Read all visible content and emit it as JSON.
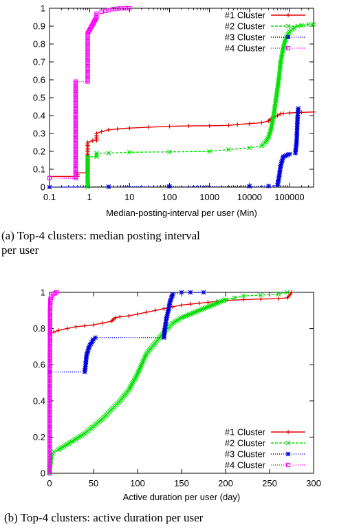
{
  "colors": {
    "c1": "#e00000",
    "c2": "#00e000",
    "c3": "#0000dd",
    "c4": "#ff00ff"
  },
  "chart_data": [
    {
      "id": "a",
      "type": "line",
      "xscale": "log",
      "xlim": [
        0.1,
        400000
      ],
      "ylim": [
        0,
        1
      ],
      "xticks": [
        0.1,
        1,
        10,
        100,
        1000,
        10000,
        100000
      ],
      "xtick_labels": [
        "0.1",
        "1",
        "10",
        "100",
        "1000",
        "10000",
        "100000"
      ],
      "yticks": [
        0,
        0.1,
        0.2,
        0.3,
        0.4,
        0.5,
        0.6,
        0.7,
        0.8,
        0.9,
        1
      ],
      "ytick_labels": [
        "0",
        "0.1",
        "0.2",
        "0.3",
        "0.4",
        "0.5",
        "0.6",
        "0.7",
        "0.8",
        "0.9",
        "1"
      ],
      "xlabel": "Median-posting-interval per user (Min)",
      "ylabel": "",
      "legend_position": "top-right",
      "caption_lines": [
        "(a) Top-4 clusters: median posting interval",
        "per user"
      ],
      "series": [
        {
          "name": "#1 Cluster",
          "color": "#e00000",
          "marker": "plus",
          "dash": "",
          "x": [
            0.1,
            0.5,
            0.5,
            0.9,
            0.9,
            1.2,
            1.5,
            1.5,
            2,
            3,
            5,
            10,
            30,
            100,
            300,
            1000,
            3000,
            5000,
            10000,
            20000,
            30000,
            40000,
            50000,
            60000,
            70000,
            100000,
            200000,
            400000
          ],
          "y": [
            0.06,
            0.06,
            0.08,
            0.08,
            0.25,
            0.26,
            0.26,
            0.3,
            0.31,
            0.32,
            0.325,
            0.33,
            0.335,
            0.34,
            0.342,
            0.343,
            0.345,
            0.35,
            0.355,
            0.36,
            0.37,
            0.39,
            0.4,
            0.41,
            0.412,
            0.415,
            0.418,
            0.42
          ]
        },
        {
          "name": "#2 Cluster",
          "color": "#00e000",
          "marker": "x",
          "dash": "4,2",
          "x": [
            0.9,
            0.9,
            1.5,
            1.5,
            3,
            10,
            100,
            1000,
            3000,
            10000,
            20000,
            25000,
            30000,
            35000,
            40000,
            45000,
            50000,
            55000,
            60000,
            70000,
            80000,
            100000,
            130000,
            160000,
            200000,
            300000,
            400000
          ],
          "y": [
            0,
            0.17,
            0.17,
            0.19,
            0.19,
            0.195,
            0.197,
            0.2,
            0.21,
            0.22,
            0.23,
            0.25,
            0.28,
            0.33,
            0.4,
            0.48,
            0.55,
            0.62,
            0.7,
            0.78,
            0.83,
            0.87,
            0.89,
            0.9,
            0.905,
            0.91,
            0.91
          ]
        },
        {
          "name": "#3 Cluster",
          "color": "#0000dd",
          "marker": "star",
          "dash": "1,2",
          "x": [
            0.1,
            3,
            100,
            10000,
            30000,
            50000,
            55000,
            60000,
            70000,
            100000,
            140000,
            150000,
            155000,
            160000,
            165000
          ],
          "y": [
            0,
            0.002,
            0.004,
            0.005,
            0.006,
            0.01,
            0.06,
            0.12,
            0.17,
            0.185,
            0.19,
            0.25,
            0.33,
            0.4,
            0.44
          ]
        },
        {
          "name": "#4 Cluster",
          "color": "#ff00ff",
          "marker": "square",
          "dash": "1,2",
          "x": [
            0.1,
            0.45,
            0.45,
            0.9,
            0.9,
            1.2,
            1.5,
            1.5,
            2,
            2.5,
            3,
            4,
            5,
            6,
            8,
            10
          ],
          "y": [
            0.05,
            0.05,
            0.59,
            0.59,
            0.86,
            0.91,
            0.95,
            0.97,
            0.98,
            0.985,
            0.99,
            0.995,
            0.998,
            0.999,
            1,
            1
          ]
        }
      ]
    },
    {
      "id": "b",
      "type": "line",
      "xscale": "linear",
      "xlim": [
        0,
        300
      ],
      "ylim": [
        0,
        1
      ],
      "xticks": [
        0,
        50,
        100,
        150,
        200,
        250,
        300
      ],
      "xtick_labels": [
        "0",
        "50",
        "100",
        "150",
        "200",
        "250",
        "300"
      ],
      "yticks": [
        0,
        0.2,
        0.4,
        0.6,
        0.8,
        1
      ],
      "ytick_labels": [
        "0",
        "0.2",
        "0.4",
        "0.6",
        "0.8",
        "1"
      ],
      "xlabel": "Active duration per user (day)",
      "ylabel": "",
      "legend_position": "bottom-right",
      "caption_lines": [
        "(b) Top-4 clusters: active duration per user"
      ],
      "series": [
        {
          "name": "#1 Cluster",
          "color": "#e00000",
          "marker": "plus",
          "dash": "",
          "x": [
            0,
            2,
            5,
            10,
            20,
            30,
            40,
            50,
            60,
            70,
            75,
            80,
            90,
            100,
            110,
            120,
            130,
            140,
            150,
            160,
            170,
            180,
            190,
            200,
            220,
            240,
            260,
            270,
            272,
            275
          ],
          "y": [
            0.77,
            0.78,
            0.78,
            0.79,
            0.8,
            0.81,
            0.815,
            0.82,
            0.83,
            0.84,
            0.86,
            0.865,
            0.87,
            0.88,
            0.89,
            0.9,
            0.91,
            0.92,
            0.93,
            0.935,
            0.94,
            0.945,
            0.95,
            0.955,
            0.96,
            0.963,
            0.965,
            0.97,
            0.98,
            1.0
          ]
        },
        {
          "name": "#2 Cluster",
          "color": "#00e000",
          "marker": "x",
          "dash": "4,2",
          "x": [
            0,
            2,
            5,
            10,
            20,
            30,
            40,
            50,
            60,
            70,
            80,
            90,
            100,
            110,
            120,
            130,
            140,
            150,
            160,
            170,
            180,
            190,
            200,
            210,
            220,
            240,
            260,
            270
          ],
          "y": [
            0.0,
            0.1,
            0.12,
            0.13,
            0.16,
            0.19,
            0.22,
            0.26,
            0.3,
            0.35,
            0.4,
            0.46,
            0.55,
            0.66,
            0.72,
            0.78,
            0.83,
            0.86,
            0.88,
            0.9,
            0.92,
            0.94,
            0.96,
            0.97,
            0.98,
            0.985,
            0.99,
            1.0
          ]
        },
        {
          "name": "#3 Cluster",
          "color": "#0000dd",
          "marker": "star",
          "dash": "1,2",
          "x": [
            0,
            40,
            41,
            42,
            45,
            50,
            52,
            130,
            131,
            133,
            135,
            137,
            140,
            150,
            160,
            175
          ],
          "y": [
            0.56,
            0.56,
            0.6,
            0.65,
            0.7,
            0.74,
            0.75,
            0.75,
            0.8,
            0.86,
            0.9,
            0.95,
            0.99,
            1.0,
            1.0,
            1.0
          ]
        },
        {
          "name": "#4 Cluster",
          "color": "#ff00ff",
          "marker": "square",
          "dash": "1,2",
          "x": [
            0,
            0.3,
            0.6,
            1,
            2,
            4,
            6,
            8
          ],
          "y": [
            0,
            0.5,
            0.9,
            0.96,
            0.98,
            0.99,
            0.995,
            1.0
          ]
        }
      ]
    }
  ]
}
